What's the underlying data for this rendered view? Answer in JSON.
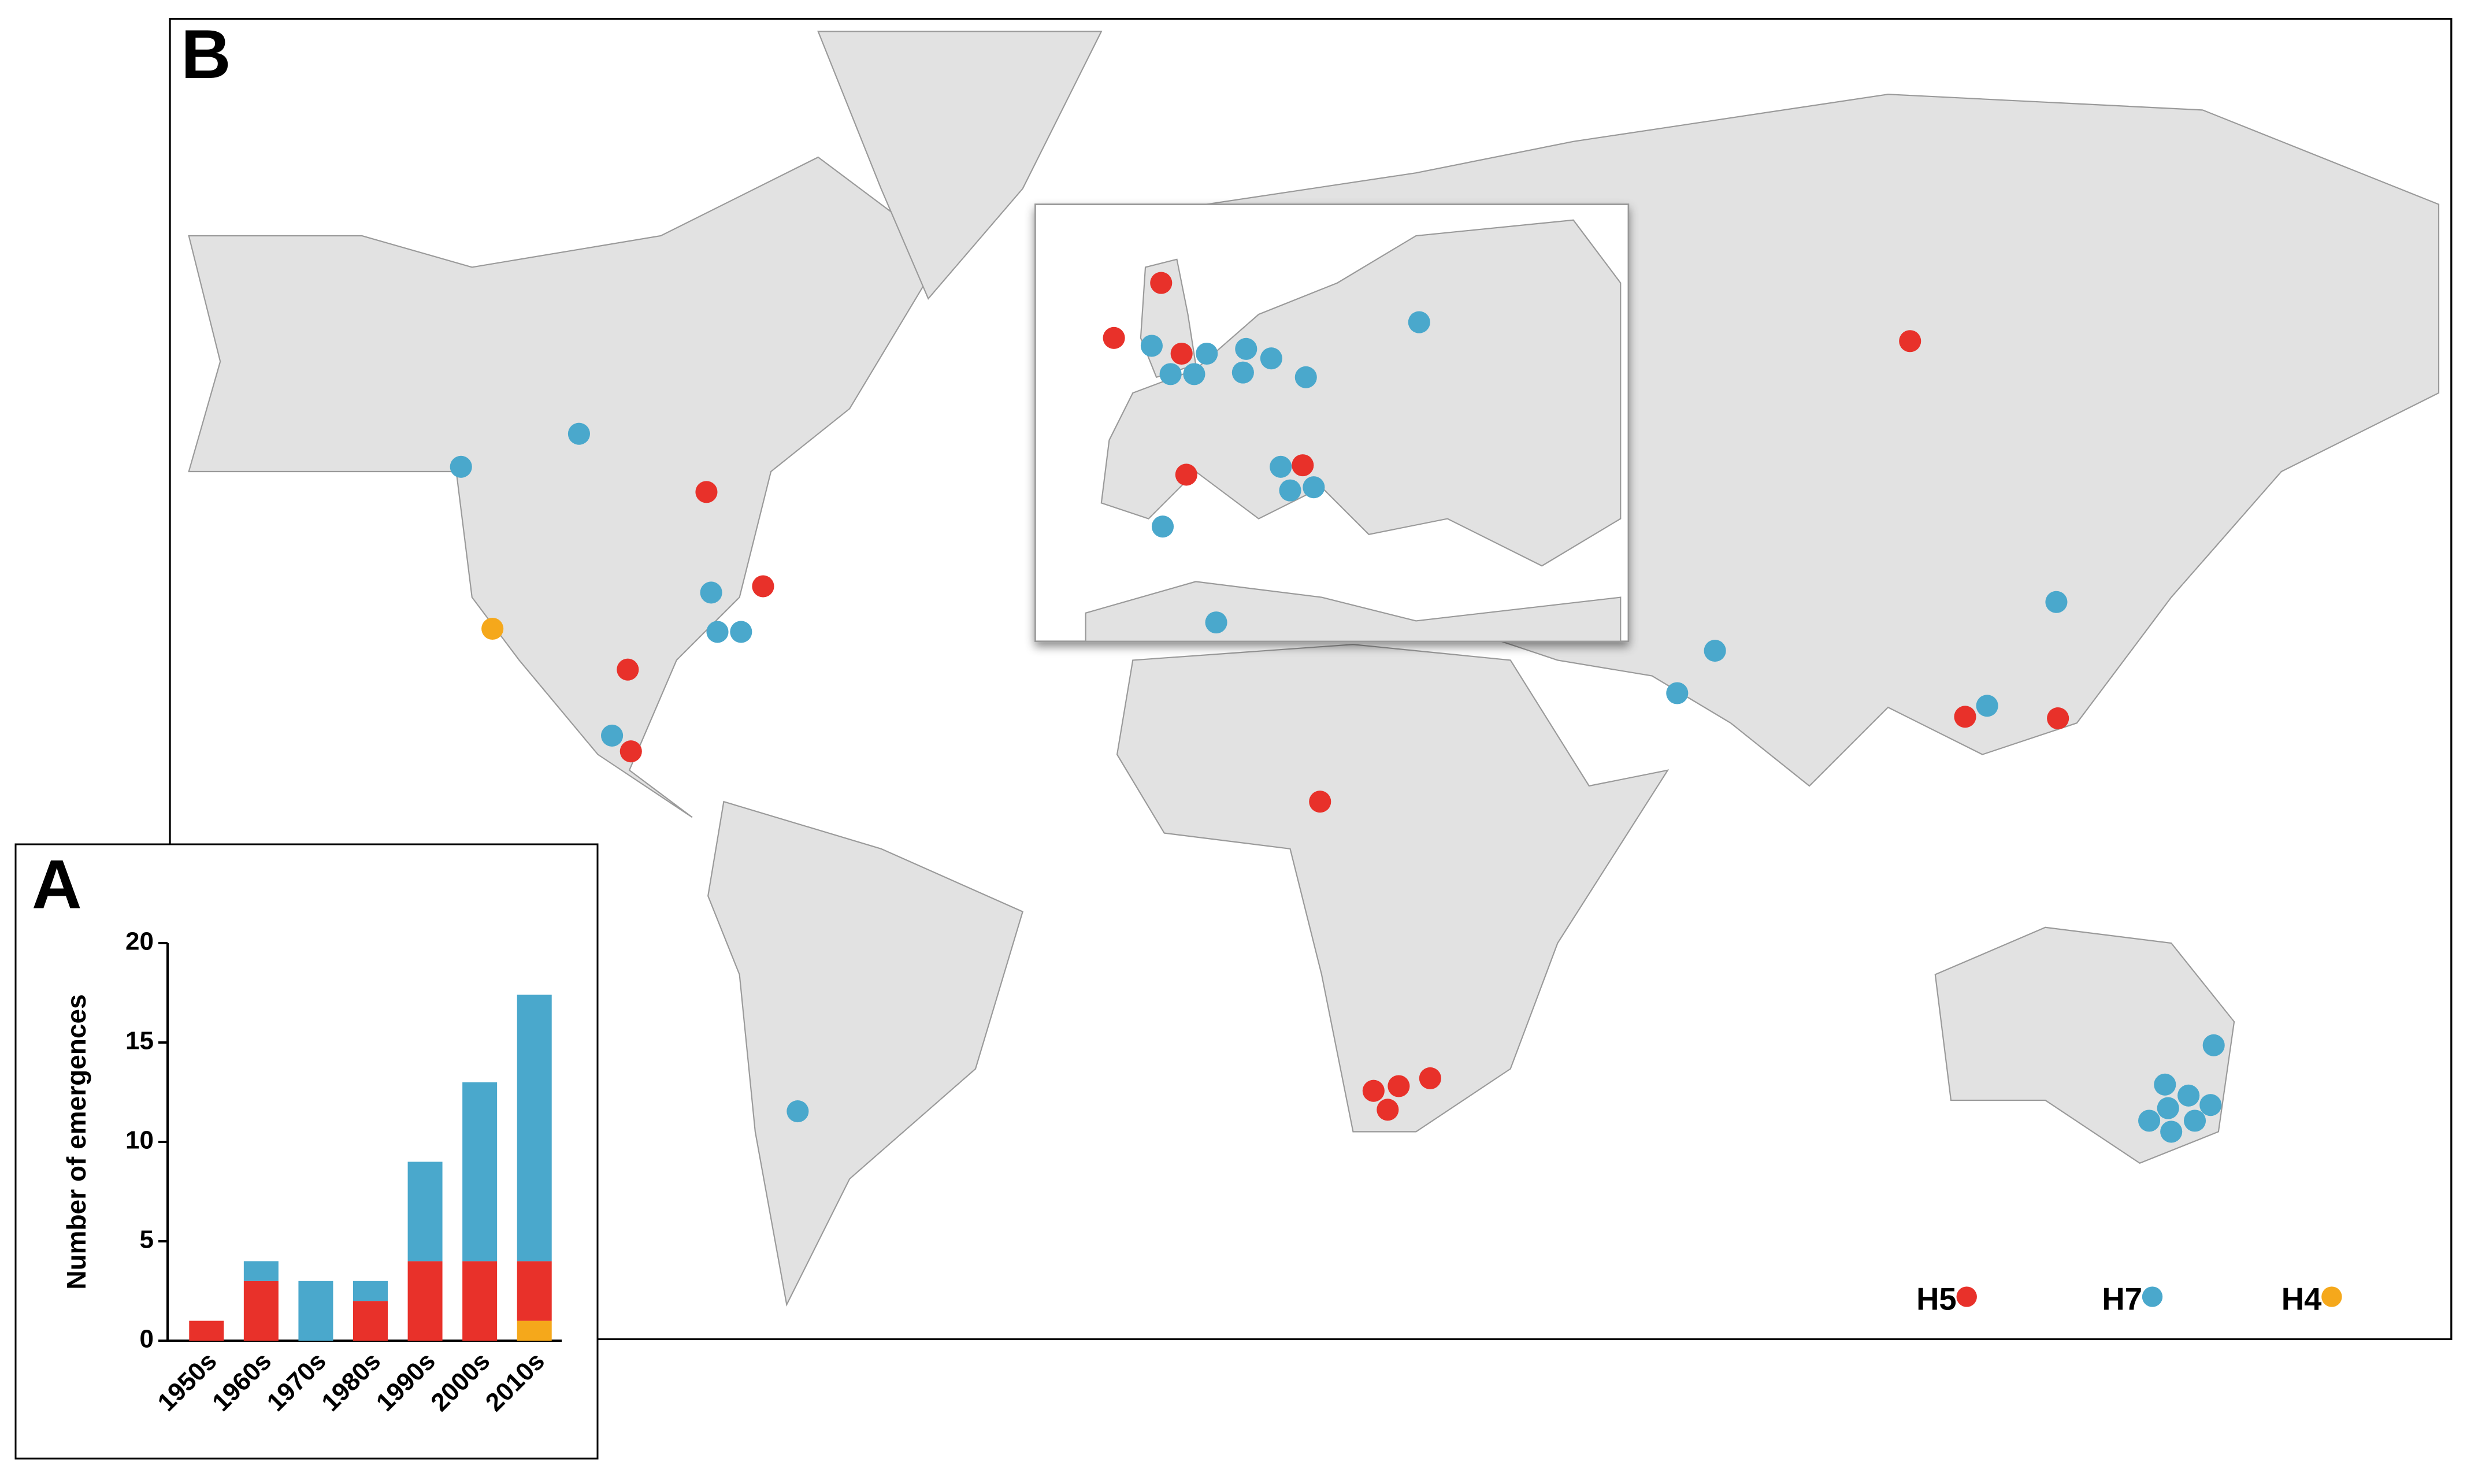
{
  "chart_data": {
    "type": "bar",
    "stacked": true,
    "panel_label": "A",
    "ylabel": "Number of emergences",
    "categories": [
      "1950s",
      "1960s",
      "1970s",
      "1980s",
      "1990s",
      "2000s",
      "2010s"
    ],
    "series": [
      {
        "name": "H4",
        "color": "#f5a81b",
        "values": [
          0,
          0,
          0,
          0,
          0,
          0,
          1
        ]
      },
      {
        "name": "H5",
        "color": "#e8312a",
        "values": [
          1,
          3,
          0,
          2,
          4,
          4,
          3
        ]
      },
      {
        "name": "H7",
        "color": "#4aa8cc",
        "values": [
          0,
          1,
          3,
          1,
          5,
          9,
          13.4
        ]
      }
    ],
    "ylim": [
      0,
      20
    ],
    "yticks": [
      0,
      5,
      10,
      15,
      20
    ]
  },
  "map": {
    "panel_label": "B"
  }
}
